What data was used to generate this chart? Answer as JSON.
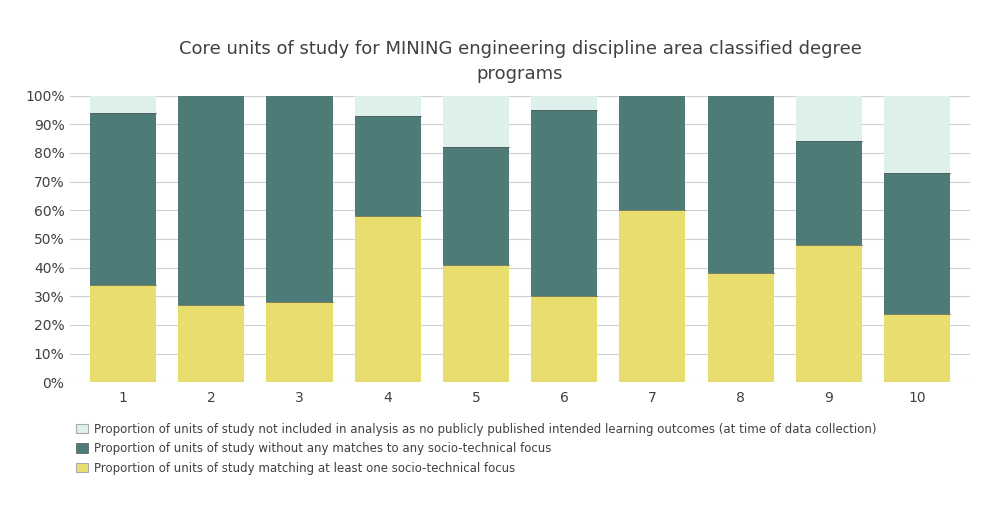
{
  "categories": [
    "1",
    "2",
    "3",
    "4",
    "5",
    "6",
    "7",
    "8",
    "9",
    "10"
  ],
  "yellow": [
    0.34,
    0.27,
    0.28,
    0.58,
    0.41,
    0.3,
    0.6,
    0.38,
    0.48,
    0.24
  ],
  "teal": [
    0.6,
    0.73,
    0.72,
    0.35,
    0.41,
    0.65,
    0.4,
    0.62,
    0.36,
    0.49
  ],
  "white": [
    0.06,
    0.0,
    0.0,
    0.07,
    0.18,
    0.05,
    0.0,
    0.0,
    0.16,
    0.27
  ],
  "color_yellow": "#e8de6e",
  "color_teal": "#4d7c78",
  "color_white": "#ddf0ec",
  "title_line1": "Core units of study for MINING engineering discipline area classified degree",
  "title_line2": "programs",
  "ylabel_ticks": [
    "0%",
    "10%",
    "20%",
    "30%",
    "40%",
    "50%",
    "60%",
    "70%",
    "80%",
    "90%",
    "100%"
  ],
  "legend_not_included": "Proportion of units of study not included in analysis as no publicly published intended learning outcomes (at time of data collection)",
  "legend_no_match": "Proportion of units of study without any matches to any socio-technical focus",
  "legend_match": "Proportion of units of study matching at least one socio-technical focus",
  "background_color": "#ffffff",
  "bar_width": 0.75,
  "title_fontsize": 13,
  "legend_fontsize": 8.5,
  "tick_fontsize": 10,
  "grid_color": "#d0d0d0",
  "text_color": "#404040"
}
